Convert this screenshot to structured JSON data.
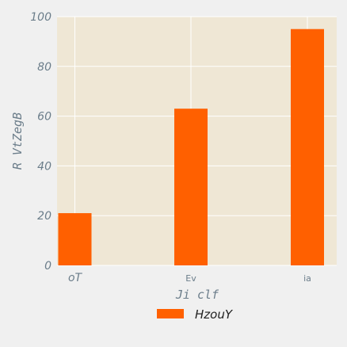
{
  "chart_data": {
    "type": "bar",
    "categories": [
      "oT",
      "Ev",
      "ia"
    ],
    "series": [
      {
        "name": "HzouY",
        "values": [
          21,
          63,
          95
        ],
        "color": "#ff6000"
      }
    ],
    "xlabel": "Ji clf",
    "ylabel": "R VtZegB",
    "ylim": [
      0,
      100
    ],
    "yticks": [
      "0",
      "20",
      "40",
      "60",
      "80",
      "100"
    ],
    "grid": true,
    "legend_position": "bottom-center",
    "plot_background": "#efe7d5",
    "grid_color": "#ffffff"
  }
}
